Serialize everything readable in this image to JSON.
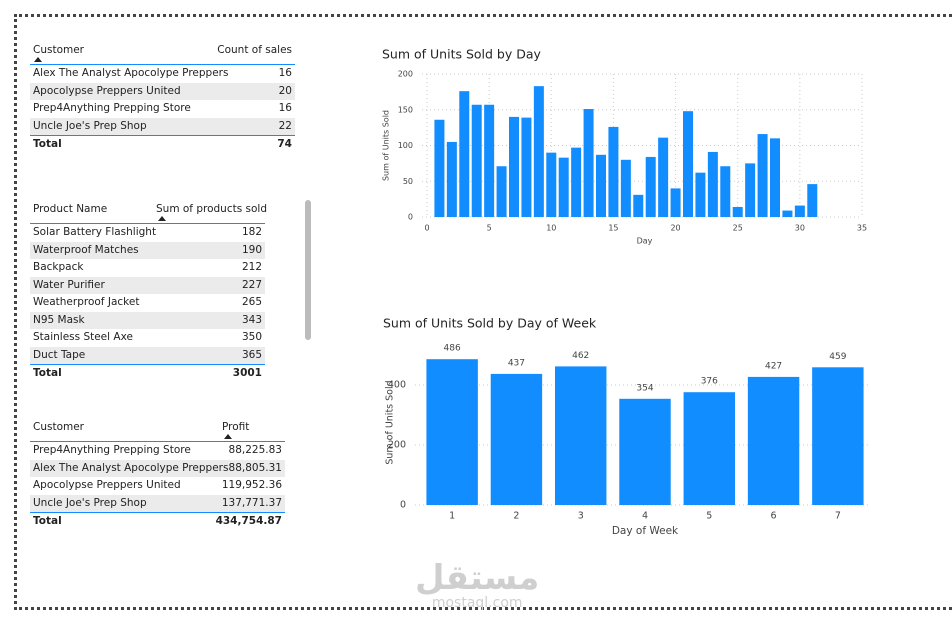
{
  "tables": [
    {
      "headers": [
        "Customer",
        "Count of sales"
      ],
      "rows": [
        [
          "Alex The Analyst Apocolype Preppers",
          16
        ],
        [
          "Apocolypse Preppers United",
          20
        ],
        [
          "Prep4Anything Prepping Store",
          16
        ],
        [
          "Uncle Joe's Prep Shop",
          22
        ]
      ],
      "total": [
        "Total",
        74
      ]
    },
    {
      "headers": [
        "Product Name",
        "Sum of products sold"
      ],
      "rows": [
        [
          "Solar Battery Flashlight",
          182
        ],
        [
          "Waterproof Matches",
          190
        ],
        [
          "Backpack",
          212
        ],
        [
          "Water Purifier",
          227
        ],
        [
          "Weatherproof Jacket",
          265
        ],
        [
          "N95 Mask",
          343
        ],
        [
          "Stainless Steel Axe",
          350
        ],
        [
          "Duct Tape",
          365
        ]
      ],
      "total": [
        "Total",
        3001
      ]
    },
    {
      "headers": [
        "Customer",
        "Profit"
      ],
      "rows": [
        [
          "Prep4Anything Prepping Store",
          "88,225.83"
        ],
        [
          "Alex The Analyst Apocolype Preppers",
          "88,805.31"
        ],
        [
          "Apocolypse Preppers United",
          "119,952.36"
        ],
        [
          "Uncle Joe's Prep Shop",
          "137,771.37"
        ]
      ],
      "total": [
        "Total",
        "434,754.87"
      ]
    }
  ],
  "chart_data": [
    {
      "type": "bar",
      "title": "Sum of Units Sold by Day",
      "x_label": "Day",
      "y_label": "Sum of Units Sold",
      "color": "#118DFF",
      "grid": true,
      "x": [
        1,
        2,
        3,
        4,
        5,
        6,
        7,
        8,
        9,
        10,
        11,
        12,
        13,
        14,
        15,
        16,
        17,
        18,
        19,
        20,
        21,
        22,
        23,
        24,
        25,
        26,
        27,
        28,
        29,
        30,
        31
      ],
      "values": [
        136,
        105,
        176,
        157,
        157,
        71,
        140,
        139,
        183,
        90,
        83,
        97,
        151,
        87,
        126,
        80,
        31,
        84,
        111,
        40,
        148,
        62,
        91,
        71,
        14,
        75,
        116,
        110,
        9,
        16,
        46
      ],
      "xlim": [
        0,
        35
      ],
      "xticks": [
        0,
        5,
        10,
        15,
        20,
        25,
        30,
        35
      ],
      "ylim": [
        0,
        200
      ],
      "yticks": [
        0,
        50,
        100,
        150,
        200
      ]
    },
    {
      "type": "bar",
      "title": "Sum of Units Sold by Day of Week",
      "x_label": "Day of Week",
      "y_label": "Sum of Units Sold",
      "color": "#118DFF",
      "grid": true,
      "categories": [
        "1",
        "2",
        "3",
        "4",
        "5",
        "6",
        "7"
      ],
      "values": [
        486,
        437,
        462,
        354,
        376,
        427,
        459
      ],
      "ylim": [
        0,
        550
      ],
      "yticks": [
        0,
        200,
        400
      ]
    }
  ],
  "watermark": {
    "arabic": "مستقل",
    "latin": "mostaql.com"
  }
}
